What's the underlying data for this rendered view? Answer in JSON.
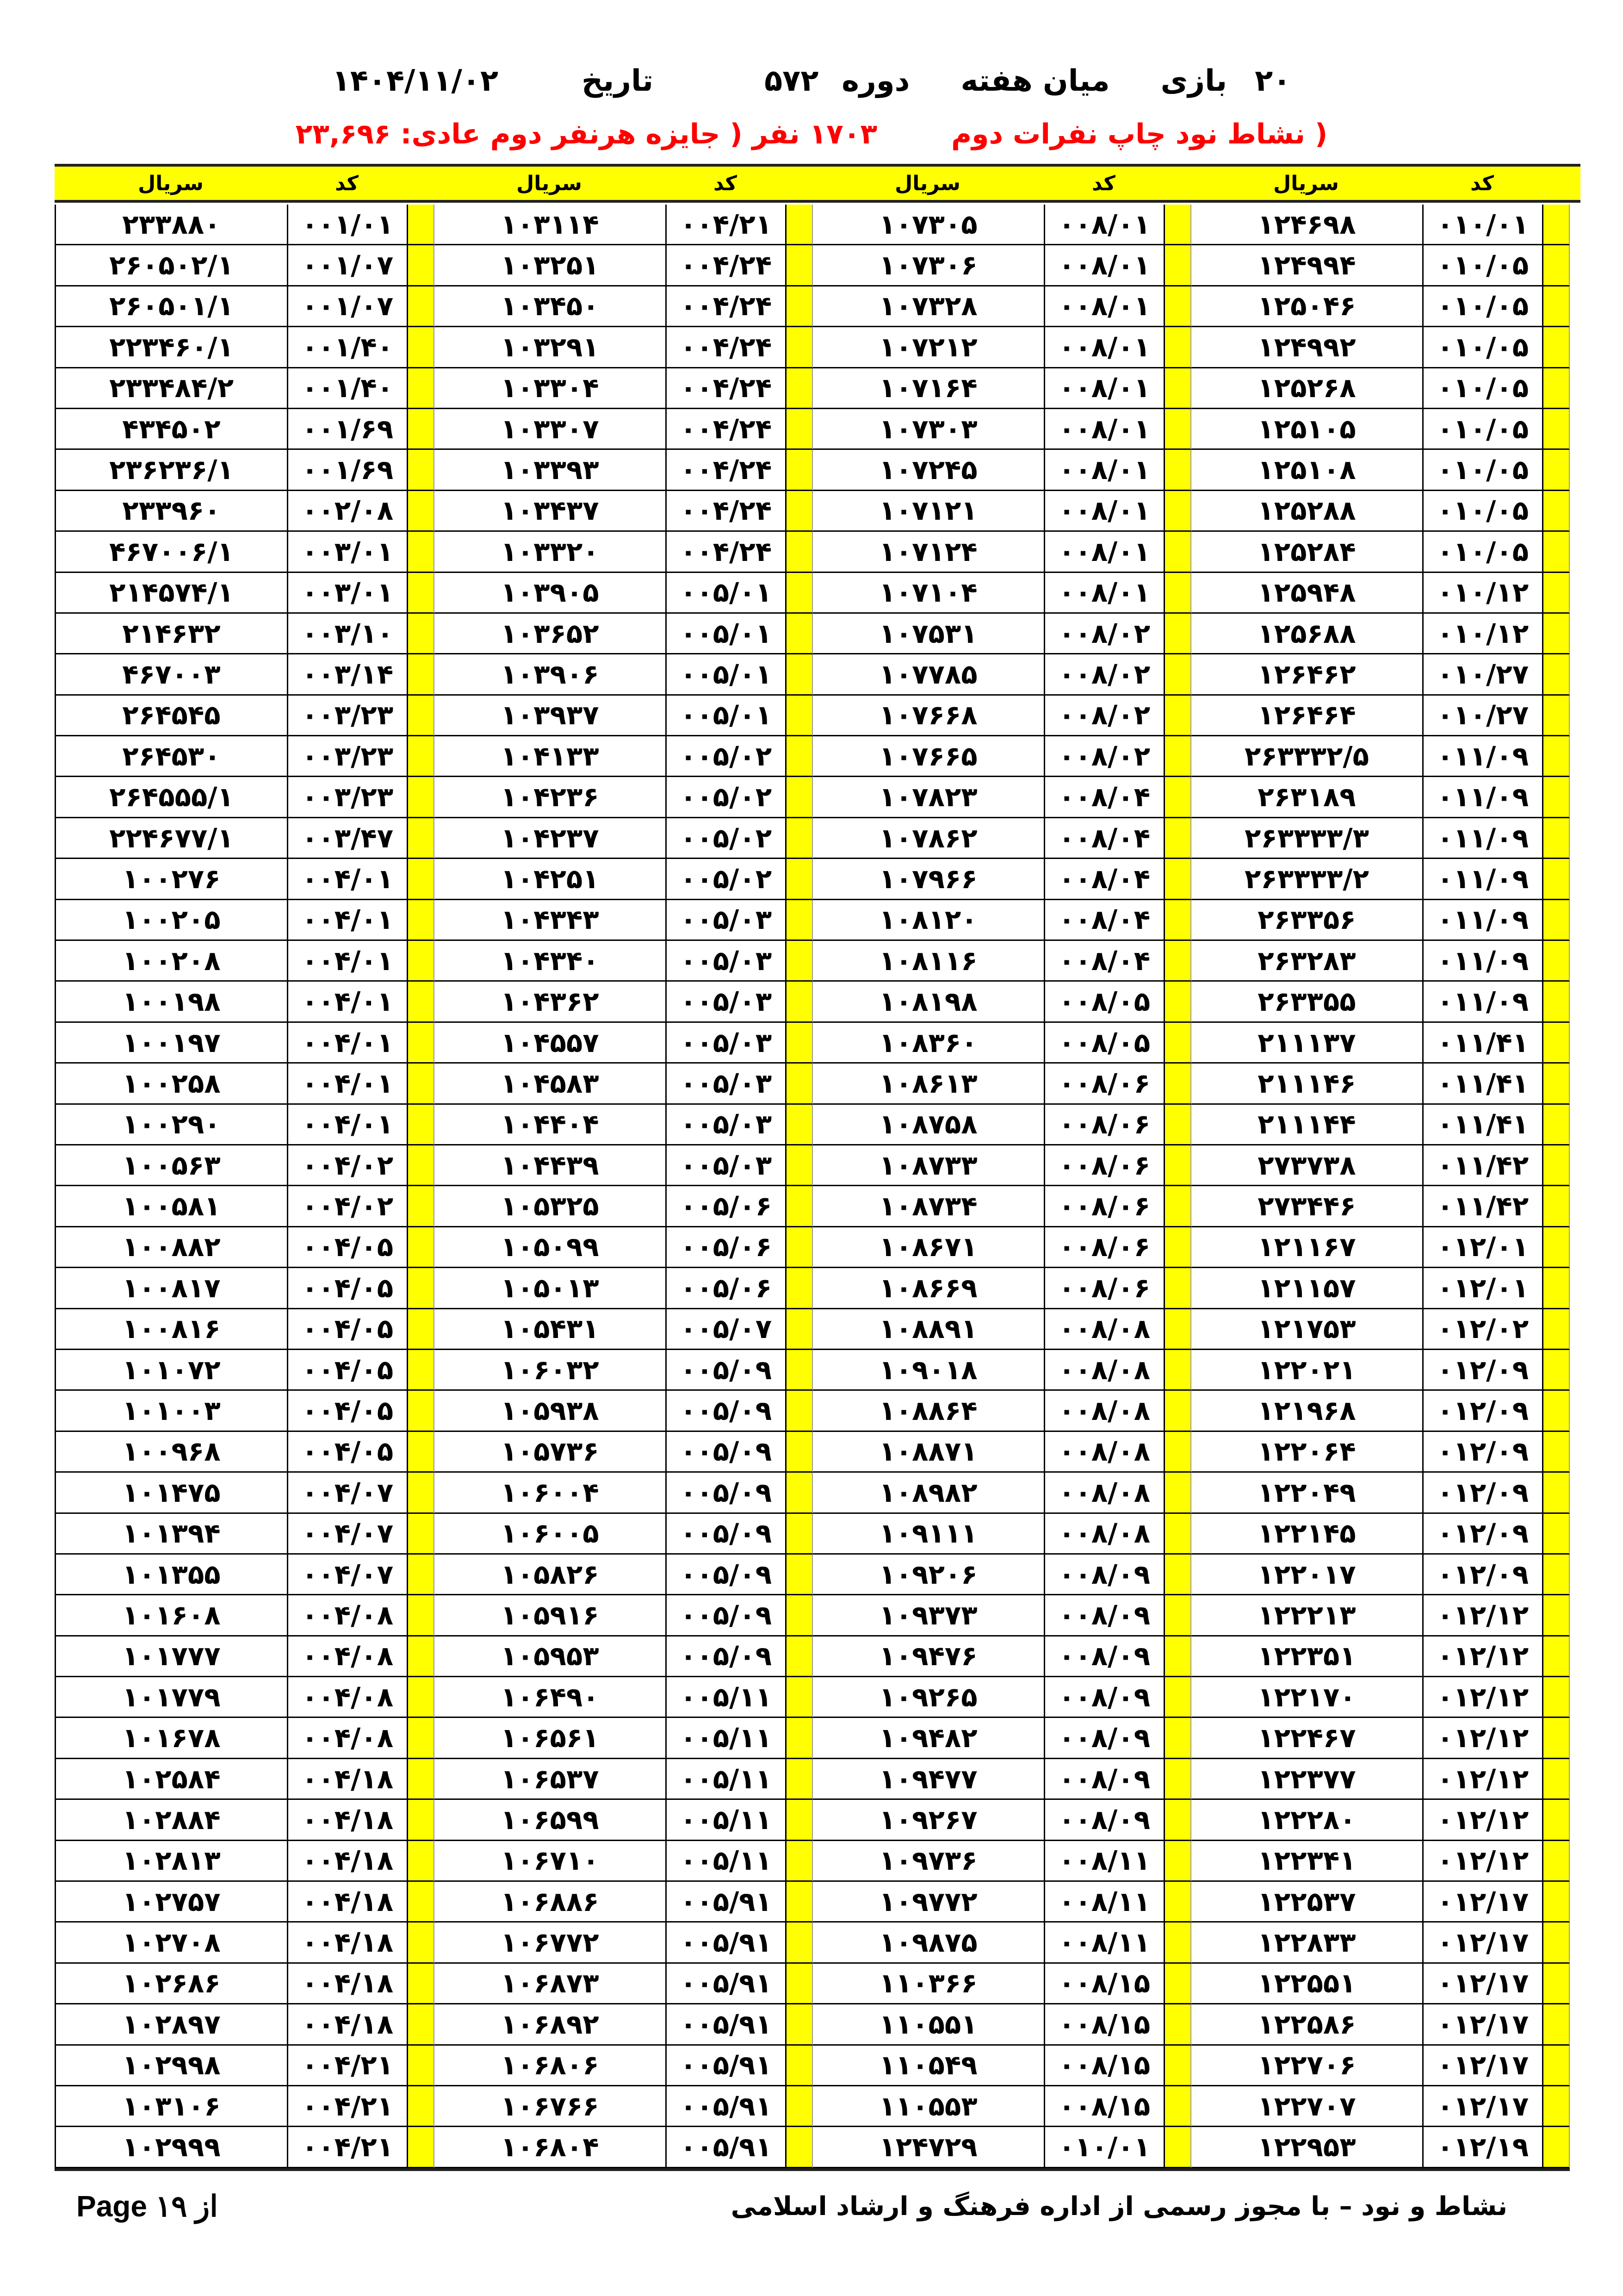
{
  "header": {
    "game_no": "۲۰",
    "game_label": "بازی",
    "game_type": "میان هفته",
    "period_label": "دوره",
    "period_no": "۵۷۲",
    "date_label": "تاریخ",
    "date": "۱۴۰۴/۱۱/۰۲",
    "subtitle_left": "( نشاط نود  چاپ نفرات دوم",
    "subtitle_count": "۱۷۰۳ نفر ( جایزه هرنفر دوم عادی: ۲۳,۶۹۶",
    "subtitle_color": "#ff0000"
  },
  "table": {
    "code_label": "کد",
    "serial_label": "سریال",
    "accent_color": "#ffff00",
    "groups": [
      {
        "rows": [
          [
            "۰۱۰/۰۱",
            "۱۲۴۶۹۸"
          ],
          [
            "۰۱۰/۰۵",
            "۱۲۴۹۹۴"
          ],
          [
            "۰۱۰/۰۵",
            "۱۲۵۰۴۶"
          ],
          [
            "۰۱۰/۰۵",
            "۱۲۴۹۹۲"
          ],
          [
            "۰۱۰/۰۵",
            "۱۲۵۲۶۸"
          ],
          [
            "۰۱۰/۰۵",
            "۱۲۵۱۰۵"
          ],
          [
            "۰۱۰/۰۵",
            "۱۲۵۱۰۸"
          ],
          [
            "۰۱۰/۰۵",
            "۱۲۵۲۸۸"
          ],
          [
            "۰۱۰/۰۵",
            "۱۲۵۲۸۴"
          ],
          [
            "۰۱۰/۱۲",
            "۱۲۵۹۴۸"
          ],
          [
            "۰۱۰/۱۲",
            "۱۲۵۶۸۸"
          ],
          [
            "۰۱۰/۲۷",
            "۱۲۶۴۶۲"
          ],
          [
            "۰۱۰/۲۷",
            "۱۲۶۴۶۴"
          ],
          [
            "۰۱۱/۰۹",
            "۲۶۳۳۳۲/۵"
          ],
          [
            "۰۱۱/۰۹",
            "۲۶۳۱۸۹"
          ],
          [
            "۰۱۱/۰۹",
            "۲۶۳۳۳۳/۳"
          ],
          [
            "۰۱۱/۰۹",
            "۲۶۳۳۳۳/۲"
          ],
          [
            "۰۱۱/۰۹",
            "۲۶۳۳۵۶"
          ],
          [
            "۰۱۱/۰۹",
            "۲۶۳۲۸۳"
          ],
          [
            "۰۱۱/۰۹",
            "۲۶۳۳۵۵"
          ],
          [
            "۰۱۱/۴۱",
            "۲۱۱۱۳۷"
          ],
          [
            "۰۱۱/۴۱",
            "۲۱۱۱۴۶"
          ],
          [
            "۰۱۱/۴۱",
            "۲۱۱۱۴۴"
          ],
          [
            "۰۱۱/۴۲",
            "۲۷۳۷۳۸"
          ],
          [
            "۰۱۱/۴۲",
            "۲۷۳۴۴۶"
          ],
          [
            "۰۱۲/۰۱",
            "۱۲۱۱۶۷"
          ],
          [
            "۰۱۲/۰۱",
            "۱۲۱۱۵۷"
          ],
          [
            "۰۱۲/۰۲",
            "۱۲۱۷۵۳"
          ],
          [
            "۰۱۲/۰۹",
            "۱۲۲۰۲۱"
          ],
          [
            "۰۱۲/۰۹",
            "۱۲۱۹۶۸"
          ],
          [
            "۰۱۲/۰۹",
            "۱۲۲۰۶۴"
          ],
          [
            "۰۱۲/۰۹",
            "۱۲۲۰۴۹"
          ],
          [
            "۰۱۲/۰۹",
            "۱۲۲۱۴۵"
          ],
          [
            "۰۱۲/۰۹",
            "۱۲۲۰۱۷"
          ],
          [
            "۰۱۲/۱۲",
            "۱۲۲۲۱۳"
          ],
          [
            "۰۱۲/۱۲",
            "۱۲۲۳۵۱"
          ],
          [
            "۰۱۲/۱۲",
            "۱۲۲۱۷۰"
          ],
          [
            "۰۱۲/۱۲",
            "۱۲۲۴۶۷"
          ],
          [
            "۰۱۲/۱۲",
            "۱۲۲۳۷۷"
          ],
          [
            "۰۱۲/۱۲",
            "۱۲۲۲۸۰"
          ],
          [
            "۰۱۲/۱۲",
            "۱۲۲۳۴۱"
          ],
          [
            "۰۱۲/۱۷",
            "۱۲۲۵۳۷"
          ],
          [
            "۰۱۲/۱۷",
            "۱۲۲۸۳۳"
          ],
          [
            "۰۱۲/۱۷",
            "۱۲۲۵۵۱"
          ],
          [
            "۰۱۲/۱۷",
            "۱۲۲۵۸۶"
          ],
          [
            "۰۱۲/۱۷",
            "۱۲۲۷۰۶"
          ],
          [
            "۰۱۲/۱۷",
            "۱۲۲۷۰۷"
          ],
          [
            "۰۱۲/۱۹",
            "۱۲۲۹۵۳"
          ]
        ]
      },
      {
        "rows": [
          [
            "۰۰۸/۰۱",
            "۱۰۷۳۰۵"
          ],
          [
            "۰۰۸/۰۱",
            "۱۰۷۳۰۶"
          ],
          [
            "۰۰۸/۰۱",
            "۱۰۷۳۲۸"
          ],
          [
            "۰۰۸/۰۱",
            "۱۰۷۲۱۲"
          ],
          [
            "۰۰۸/۰۱",
            "۱۰۷۱۶۴"
          ],
          [
            "۰۰۸/۰۱",
            "۱۰۷۳۰۳"
          ],
          [
            "۰۰۸/۰۱",
            "۱۰۷۲۴۵"
          ],
          [
            "۰۰۸/۰۱",
            "۱۰۷۱۲۱"
          ],
          [
            "۰۰۸/۰۱",
            "۱۰۷۱۲۴"
          ],
          [
            "۰۰۸/۰۱",
            "۱۰۷۱۰۴"
          ],
          [
            "۰۰۸/۰۲",
            "۱۰۷۵۳۱"
          ],
          [
            "۰۰۸/۰۲",
            "۱۰۷۷۸۵"
          ],
          [
            "۰۰۸/۰۲",
            "۱۰۷۶۶۸"
          ],
          [
            "۰۰۸/۰۲",
            "۱۰۷۶۶۵"
          ],
          [
            "۰۰۸/۰۴",
            "۱۰۷۸۲۳"
          ],
          [
            "۰۰۸/۰۴",
            "۱۰۷۸۶۲"
          ],
          [
            "۰۰۸/۰۴",
            "۱۰۷۹۶۶"
          ],
          [
            "۰۰۸/۰۴",
            "۱۰۸۱۲۰"
          ],
          [
            "۰۰۸/۰۴",
            "۱۰۸۱۱۶"
          ],
          [
            "۰۰۸/۰۵",
            "۱۰۸۱۹۸"
          ],
          [
            "۰۰۸/۰۵",
            "۱۰۸۳۶۰"
          ],
          [
            "۰۰۸/۰۶",
            "۱۰۸۶۱۳"
          ],
          [
            "۰۰۸/۰۶",
            "۱۰۸۷۵۸"
          ],
          [
            "۰۰۸/۰۶",
            "۱۰۸۷۳۳"
          ],
          [
            "۰۰۸/۰۶",
            "۱۰۸۷۳۴"
          ],
          [
            "۰۰۸/۰۶",
            "۱۰۸۶۷۱"
          ],
          [
            "۰۰۸/۰۶",
            "۱۰۸۶۶۹"
          ],
          [
            "۰۰۸/۰۸",
            "۱۰۸۸۹۱"
          ],
          [
            "۰۰۸/۰۸",
            "۱۰۹۰۱۸"
          ],
          [
            "۰۰۸/۰۸",
            "۱۰۸۸۶۴"
          ],
          [
            "۰۰۸/۰۸",
            "۱۰۸۸۷۱"
          ],
          [
            "۰۰۸/۰۸",
            "۱۰۸۹۸۲"
          ],
          [
            "۰۰۸/۰۸",
            "۱۰۹۱۱۱"
          ],
          [
            "۰۰۸/۰۹",
            "۱۰۹۲۰۶"
          ],
          [
            "۰۰۸/۰۹",
            "۱۰۹۳۷۳"
          ],
          [
            "۰۰۸/۰۹",
            "۱۰۹۴۷۶"
          ],
          [
            "۰۰۸/۰۹",
            "۱۰۹۲۶۵"
          ],
          [
            "۰۰۸/۰۹",
            "۱۰۹۴۸۲"
          ],
          [
            "۰۰۸/۰۹",
            "۱۰۹۴۷۷"
          ],
          [
            "۰۰۸/۰۹",
            "۱۰۹۲۶۷"
          ],
          [
            "۰۰۸/۱۱",
            "۱۰۹۷۳۶"
          ],
          [
            "۰۰۸/۱۱",
            "۱۰۹۷۷۲"
          ],
          [
            "۰۰۸/۱۱",
            "۱۰۹۸۷۵"
          ],
          [
            "۰۰۸/۱۵",
            "۱۱۰۳۶۶"
          ],
          [
            "۰۰۸/۱۵",
            "۱۱۰۵۵۱"
          ],
          [
            "۰۰۸/۱۵",
            "۱۱۰۵۴۹"
          ],
          [
            "۰۰۸/۱۵",
            "۱۱۰۵۵۳"
          ],
          [
            "۰۱۰/۰۱",
            "۱۲۴۷۲۹"
          ]
        ]
      },
      {
        "rows": [
          [
            "۰۰۴/۲۱",
            "۱۰۳۱۱۴"
          ],
          [
            "۰۰۴/۲۴",
            "۱۰۳۲۵۱"
          ],
          [
            "۰۰۴/۲۴",
            "۱۰۳۴۵۰"
          ],
          [
            "۰۰۴/۲۴",
            "۱۰۳۲۹۱"
          ],
          [
            "۰۰۴/۲۴",
            "۱۰۳۳۰۴"
          ],
          [
            "۰۰۴/۲۴",
            "۱۰۳۳۰۷"
          ],
          [
            "۰۰۴/۲۴",
            "۱۰۳۳۹۳"
          ],
          [
            "۰۰۴/۲۴",
            "۱۰۳۴۳۷"
          ],
          [
            "۰۰۴/۲۴",
            "۱۰۳۳۲۰"
          ],
          [
            "۰۰۵/۰۱",
            "۱۰۳۹۰۵"
          ],
          [
            "۰۰۵/۰۱",
            "۱۰۳۶۵۲"
          ],
          [
            "۰۰۵/۰۱",
            "۱۰۳۹۰۶"
          ],
          [
            "۰۰۵/۰۱",
            "۱۰۳۹۳۷"
          ],
          [
            "۰۰۵/۰۲",
            "۱۰۴۱۳۳"
          ],
          [
            "۰۰۵/۰۲",
            "۱۰۴۲۳۶"
          ],
          [
            "۰۰۵/۰۲",
            "۱۰۴۲۳۷"
          ],
          [
            "۰۰۵/۰۲",
            "۱۰۴۲۵۱"
          ],
          [
            "۰۰۵/۰۳",
            "۱۰۴۳۴۳"
          ],
          [
            "۰۰۵/۰۳",
            "۱۰۴۳۴۰"
          ],
          [
            "۰۰۵/۰۳",
            "۱۰۴۳۶۲"
          ],
          [
            "۰۰۵/۰۳",
            "۱۰۴۵۵۷"
          ],
          [
            "۰۰۵/۰۳",
            "۱۰۴۵۸۳"
          ],
          [
            "۰۰۵/۰۳",
            "۱۰۴۴۰۴"
          ],
          [
            "۰۰۵/۰۳",
            "۱۰۴۴۳۹"
          ],
          [
            "۰۰۵/۰۶",
            "۱۰۵۳۲۵"
          ],
          [
            "۰۰۵/۰۶",
            "۱۰۵۰۹۹"
          ],
          [
            "۰۰۵/۰۶",
            "۱۰۵۰۱۳"
          ],
          [
            "۰۰۵/۰۷",
            "۱۰۵۴۳۱"
          ],
          [
            "۰۰۵/۰۹",
            "۱۰۶۰۳۲"
          ],
          [
            "۰۰۵/۰۹",
            "۱۰۵۹۳۸"
          ],
          [
            "۰۰۵/۰۹",
            "۱۰۵۷۳۶"
          ],
          [
            "۰۰۵/۰۹",
            "۱۰۶۰۰۴"
          ],
          [
            "۰۰۵/۰۹",
            "۱۰۶۰۰۵"
          ],
          [
            "۰۰۵/۰۹",
            "۱۰۵۸۲۶"
          ],
          [
            "۰۰۵/۰۹",
            "۱۰۵۹۱۶"
          ],
          [
            "۰۰۵/۰۹",
            "۱۰۵۹۵۳"
          ],
          [
            "۰۰۵/۱۱",
            "۱۰۶۴۹۰"
          ],
          [
            "۰۰۵/۱۱",
            "۱۰۶۵۶۱"
          ],
          [
            "۰۰۵/۱۱",
            "۱۰۶۵۳۷"
          ],
          [
            "۰۰۵/۱۱",
            "۱۰۶۵۹۹"
          ],
          [
            "۰۰۵/۱۱",
            "۱۰۶۷۱۰"
          ],
          [
            "۰۰۵/۹۱",
            "۱۰۶۸۸۶"
          ],
          [
            "۰۰۵/۹۱",
            "۱۰۶۷۷۲"
          ],
          [
            "۰۰۵/۹۱",
            "۱۰۶۸۷۳"
          ],
          [
            "۰۰۵/۹۱",
            "۱۰۶۸۹۲"
          ],
          [
            "۰۰۵/۹۱",
            "۱۰۶۸۰۶"
          ],
          [
            "۰۰۵/۹۱",
            "۱۰۶۷۶۶"
          ],
          [
            "۰۰۵/۹۱",
            "۱۰۶۸۰۴"
          ]
        ]
      },
      {
        "rows": [
          [
            "۰۰۱/۰۱",
            "۲۳۳۸۸۰"
          ],
          [
            "۰۰۱/۰۷",
            "۲۶۰۵۰۲/۱"
          ],
          [
            "۰۰۱/۰۷",
            "۲۶۰۵۰۱/۱"
          ],
          [
            "۰۰۱/۴۰",
            "۲۲۳۴۶۰/۱"
          ],
          [
            "۰۰۱/۴۰",
            "۲۳۳۴۸۴/۲"
          ],
          [
            "۰۰۱/۶۹",
            "۴۳۴۵۰۲"
          ],
          [
            "۰۰۱/۶۹",
            "۲۳۶۲۳۶/۱"
          ],
          [
            "۰۰۲/۰۸",
            "۲۳۳۹۶۰"
          ],
          [
            "۰۰۳/۰۱",
            "۴۶۷۰۰۶/۱"
          ],
          [
            "۰۰۳/۰۱",
            "۲۱۴۵۷۴/۱"
          ],
          [
            "۰۰۳/۱۰",
            "۲۱۴۶۳۲"
          ],
          [
            "۰۰۳/۱۴",
            "۴۶۷۰۰۳"
          ],
          [
            "۰۰۳/۲۳",
            "۲۶۴۵۴۵"
          ],
          [
            "۰۰۳/۲۳",
            "۲۶۴۵۳۰"
          ],
          [
            "۰۰۳/۲۳",
            "۲۶۴۵۵۵/۱"
          ],
          [
            "۰۰۳/۴۷",
            "۲۲۴۶۷۷/۱"
          ],
          [
            "۰۰۴/۰۱",
            "۱۰۰۲۷۶"
          ],
          [
            "۰۰۴/۰۱",
            "۱۰۰۲۰۵"
          ],
          [
            "۰۰۴/۰۱",
            "۱۰۰۲۰۸"
          ],
          [
            "۰۰۴/۰۱",
            "۱۰۰۱۹۸"
          ],
          [
            "۰۰۴/۰۱",
            "۱۰۰۱۹۷"
          ],
          [
            "۰۰۴/۰۱",
            "۱۰۰۲۵۸"
          ],
          [
            "۰۰۴/۰۱",
            "۱۰۰۲۹۰"
          ],
          [
            "۰۰۴/۰۲",
            "۱۰۰۵۶۳"
          ],
          [
            "۰۰۴/۰۲",
            "۱۰۰۵۸۱"
          ],
          [
            "۰۰۴/۰۵",
            "۱۰۰۸۸۲"
          ],
          [
            "۰۰۴/۰۵",
            "۱۰۰۸۱۷"
          ],
          [
            "۰۰۴/۰۵",
            "۱۰۰۸۱۶"
          ],
          [
            "۰۰۴/۰۵",
            "۱۰۱۰۷۲"
          ],
          [
            "۰۰۴/۰۵",
            "۱۰۱۰۰۳"
          ],
          [
            "۰۰۴/۰۵",
            "۱۰۰۹۶۸"
          ],
          [
            "۰۰۴/۰۷",
            "۱۰۱۴۷۵"
          ],
          [
            "۰۰۴/۰۷",
            "۱۰۱۳۹۴"
          ],
          [
            "۰۰۴/۰۷",
            "۱۰۱۳۵۵"
          ],
          [
            "۰۰۴/۰۸",
            "۱۰۱۶۰۸"
          ],
          [
            "۰۰۴/۰۸",
            "۱۰۱۷۷۷"
          ],
          [
            "۰۰۴/۰۸",
            "۱۰۱۷۷۹"
          ],
          [
            "۰۰۴/۰۸",
            "۱۰۱۶۷۸"
          ],
          [
            "۰۰۴/۱۸",
            "۱۰۲۵۸۴"
          ],
          [
            "۰۰۴/۱۸",
            "۱۰۲۸۸۴"
          ],
          [
            "۰۰۴/۱۸",
            "۱۰۲۸۱۳"
          ],
          [
            "۰۰۴/۱۸",
            "۱۰۲۷۵۷"
          ],
          [
            "۰۰۴/۱۸",
            "۱۰۲۷۰۸"
          ],
          [
            "۰۰۴/۱۸",
            "۱۰۲۶۸۶"
          ],
          [
            "۰۰۴/۱۸",
            "۱۰۲۸۹۷"
          ],
          [
            "۰۰۴/۲۱",
            "۱۰۲۹۹۸"
          ],
          [
            "۰۰۴/۲۱",
            "۱۰۳۱۰۶"
          ],
          [
            "۰۰۴/۲۱",
            "۱۰۲۹۹۹"
          ]
        ]
      }
    ]
  },
  "footer": {
    "page_label": "Page ۱۹ از",
    "license_text": "نشاط و نود – با مجوز رسمی از اداره فرهنگ و ارشاد اسلامی"
  }
}
